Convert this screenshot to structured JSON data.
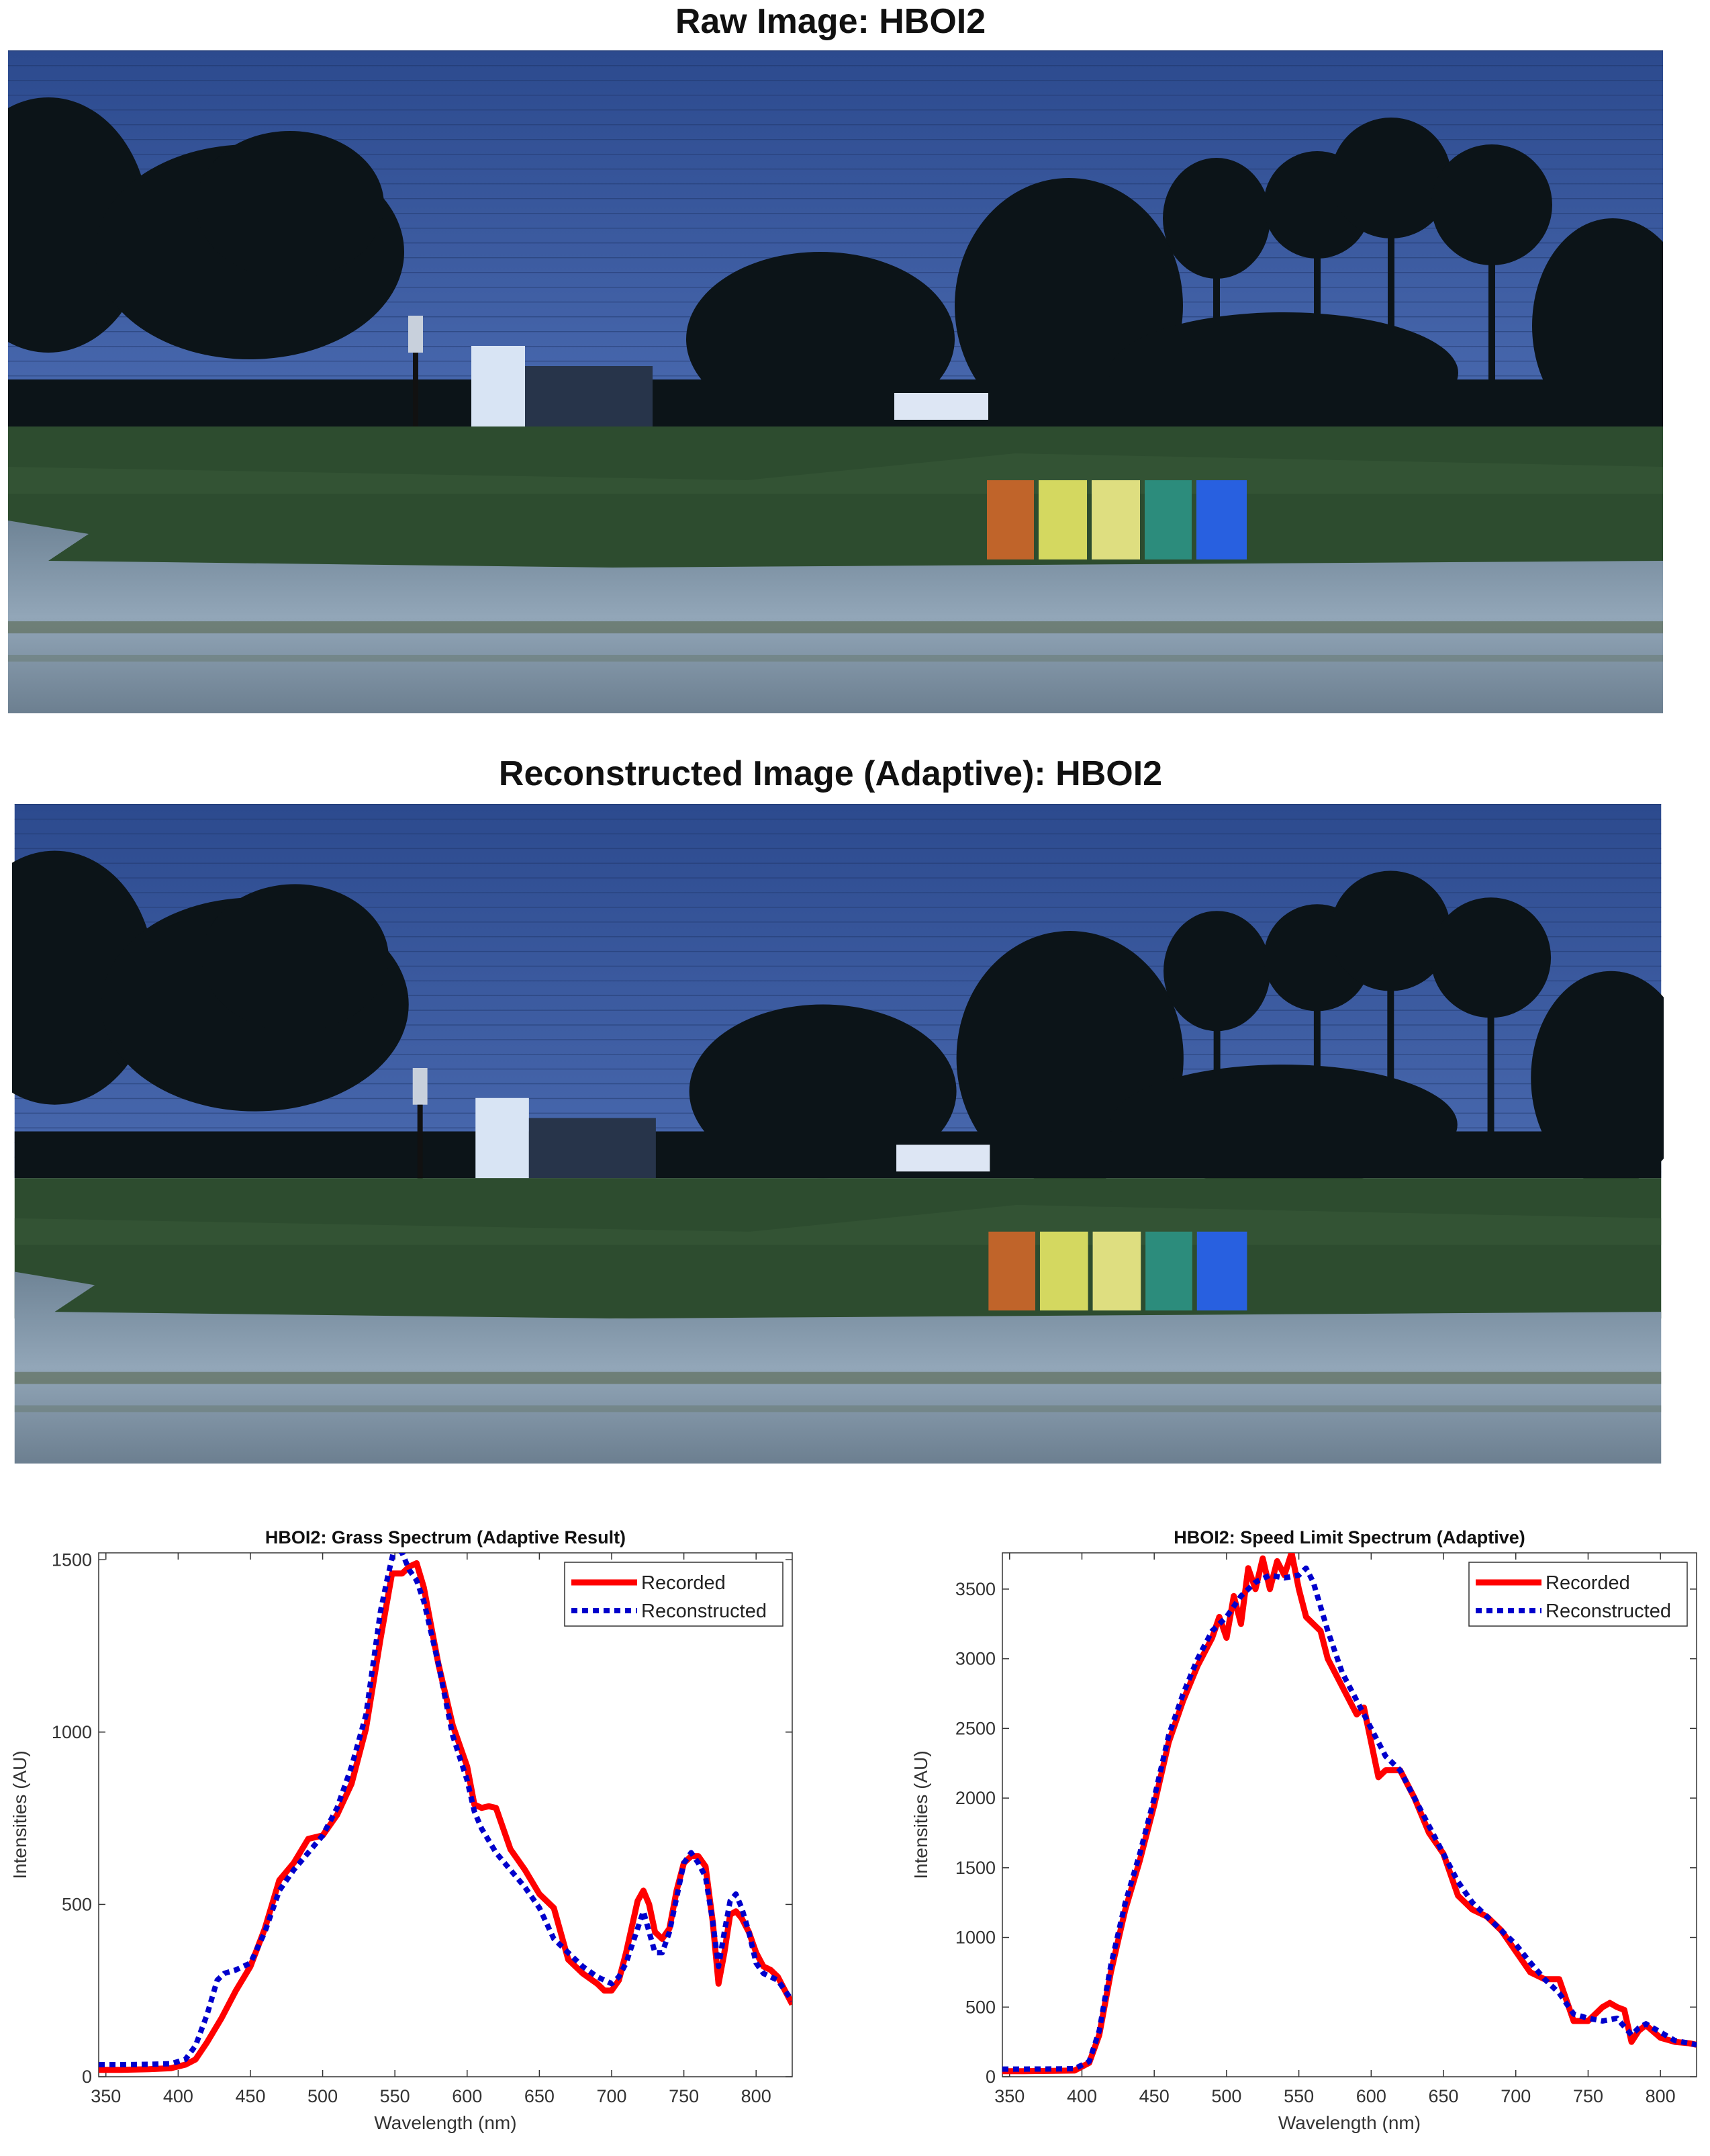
{
  "images": {
    "raw_title": "Raw Image: HBOI2",
    "recon_title": "Reconstructed Image (Adaptive): HBOI2"
  },
  "colors": {
    "recorded": "#ff0000",
    "reconstructed": "#0000cc",
    "sky": "#3c5aa0",
    "grass": "#2e5030",
    "road": "#8a9cae"
  },
  "chart_data": [
    {
      "type": "line",
      "title": "HBOI2: Grass Spectrum (Adaptive Result)",
      "xlabel": "Wavelength (nm)",
      "ylabel": "Intensities (AU)",
      "xlim": [
        345,
        825
      ],
      "ylim": [
        0,
        1520
      ],
      "xticks": [
        350,
        400,
        450,
        500,
        550,
        600,
        650,
        700,
        750,
        800
      ],
      "yticks": [
        0,
        500,
        1000,
        1500
      ],
      "legend": "top-right",
      "series": [
        {
          "name": "Recorded",
          "style": "solid",
          "x": [
            345,
            360,
            380,
            395,
            405,
            412,
            420,
            430,
            440,
            450,
            460,
            470,
            480,
            490,
            500,
            510,
            520,
            530,
            540,
            548,
            555,
            560,
            565,
            570,
            580,
            590,
            600,
            605,
            610,
            615,
            620,
            630,
            640,
            650,
            660,
            670,
            680,
            690,
            695,
            700,
            705,
            710,
            718,
            722,
            726,
            730,
            735,
            740,
            745,
            750,
            755,
            760,
            765,
            770,
            774,
            778,
            782,
            786,
            790,
            795,
            800,
            805,
            810,
            815,
            820,
            825
          ],
          "y": [
            20,
            20,
            22,
            25,
            35,
            50,
            100,
            170,
            250,
            320,
            430,
            570,
            620,
            690,
            700,
            760,
            850,
            1010,
            1270,
            1460,
            1460,
            1480,
            1490,
            1420,
            1200,
            1020,
            900,
            790,
            780,
            785,
            780,
            660,
            600,
            530,
            490,
            340,
            300,
            270,
            250,
            250,
            280,
            360,
            510,
            540,
            500,
            420,
            400,
            430,
            540,
            620,
            640,
            640,
            610,
            450,
            270,
            360,
            470,
            480,
            460,
            420,
            360,
            320,
            310,
            290,
            250,
            210
          ]
        },
        {
          "name": "Reconstructed",
          "style": "dotted",
          "x": [
            345,
            360,
            380,
            395,
            405,
            412,
            420,
            427,
            432,
            440,
            450,
            460,
            470,
            480,
            490,
            500,
            510,
            520,
            530,
            540,
            545,
            550,
            555,
            560,
            565,
            570,
            580,
            590,
            600,
            605,
            610,
            620,
            630,
            640,
            650,
            660,
            670,
            680,
            690,
            700,
            705,
            710,
            718,
            722,
            726,
            730,
            735,
            740,
            745,
            750,
            755,
            760,
            765,
            770,
            774,
            778,
            782,
            786,
            790,
            795,
            800,
            805,
            810,
            815,
            820,
            825
          ],
          "y": [
            35,
            35,
            36,
            38,
            50,
            90,
            180,
            280,
            300,
            310,
            330,
            420,
            540,
            600,
            650,
            700,
            780,
            900,
            1050,
            1350,
            1450,
            1540,
            1520,
            1470,
            1440,
            1380,
            1200,
            990,
            860,
            770,
            720,
            650,
            600,
            550,
            490,
            400,
            360,
            320,
            290,
            270,
            290,
            330,
            430,
            480,
            420,
            360,
            360,
            420,
            520,
            620,
            650,
            620,
            580,
            450,
            320,
            420,
            510,
            530,
            490,
            420,
            330,
            300,
            290,
            280,
            250,
            220
          ]
        }
      ]
    },
    {
      "type": "line",
      "title": "HBOI2: Speed Limit Spectrum (Adaptive)",
      "xlabel": "Wavelength (nm)",
      "ylabel": "Intensities (AU)",
      "xlim": [
        345,
        825
      ],
      "ylim": [
        0,
        3760
      ],
      "xticks": [
        350,
        400,
        450,
        500,
        550,
        600,
        650,
        700,
        750,
        800
      ],
      "yticks": [
        0,
        500,
        1000,
        1500,
        2000,
        2500,
        3000,
        3500
      ],
      "legend": "top-right",
      "series": [
        {
          "name": "Recorded",
          "style": "solid",
          "x": [
            345,
            360,
            380,
            395,
            405,
            412,
            420,
            430,
            440,
            450,
            460,
            470,
            480,
            490,
            495,
            500,
            505,
            510,
            515,
            520,
            525,
            530,
            535,
            540,
            545,
            550,
            555,
            560,
            565,
            570,
            580,
            590,
            595,
            600,
            605,
            610,
            620,
            630,
            640,
            650,
            660,
            670,
            680,
            690,
            700,
            710,
            720,
            730,
            740,
            750,
            760,
            765,
            770,
            775,
            780,
            785,
            790,
            800,
            810,
            820,
            825
          ],
          "y": [
            40,
            40,
            42,
            45,
            100,
            300,
            750,
            1200,
            1550,
            1950,
            2400,
            2700,
            2950,
            3150,
            3300,
            3150,
            3450,
            3250,
            3650,
            3500,
            3720,
            3500,
            3700,
            3600,
            3760,
            3500,
            3300,
            3250,
            3200,
            3000,
            2800,
            2600,
            2650,
            2400,
            2150,
            2200,
            2200,
            2000,
            1750,
            1600,
            1300,
            1200,
            1150,
            1050,
            900,
            750,
            700,
            700,
            400,
            400,
            500,
            530,
            500,
            480,
            250,
            330,
            370,
            280,
            250,
            240,
            230
          ]
        },
        {
          "name": "Reconstructed",
          "style": "dotted",
          "x": [
            345,
            360,
            380,
            395,
            405,
            412,
            420,
            430,
            440,
            450,
            460,
            470,
            480,
            490,
            500,
            510,
            520,
            530,
            540,
            550,
            555,
            560,
            570,
            580,
            590,
            600,
            610,
            620,
            630,
            640,
            650,
            660,
            670,
            680,
            690,
            700,
            710,
            720,
            730,
            740,
            750,
            760,
            770,
            780,
            785,
            790,
            800,
            810,
            820,
            825
          ],
          "y": [
            55,
            55,
            56,
            58,
            110,
            330,
            800,
            1250,
            1600,
            2000,
            2450,
            2750,
            3000,
            3200,
            3300,
            3450,
            3550,
            3600,
            3580,
            3600,
            3650,
            3550,
            3200,
            2900,
            2700,
            2500,
            2300,
            2200,
            2000,
            1800,
            1600,
            1400,
            1250,
            1150,
            1050,
            950,
            820,
            700,
            600,
            450,
            420,
            400,
            420,
            300,
            350,
            380,
            320,
            260,
            240,
            230
          ]
        }
      ]
    }
  ]
}
